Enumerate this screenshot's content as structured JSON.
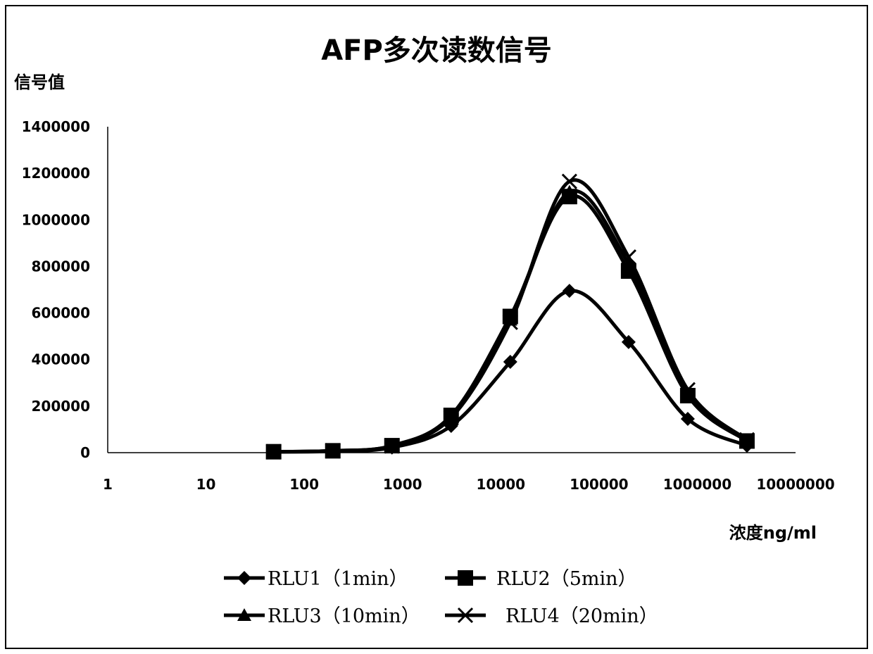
{
  "chart_data": {
    "type": "line",
    "title": "AFP多次读数信号",
    "ylabel": "信号值",
    "xlabel": "浓度ng/ml",
    "x_scale": "log",
    "xlim": [
      1,
      10000000
    ],
    "ylim": [
      0,
      1400000
    ],
    "x_ticks": [
      "1",
      "10",
      "100",
      "1000",
      "10000",
      "100000",
      "1000000",
      "10000000"
    ],
    "y_ticks": [
      "0",
      "200000",
      "400000",
      "600000",
      "800000",
      "1000000",
      "1200000",
      "1400000"
    ],
    "x": [
      48.8,
      195.3,
      781.3,
      3125,
      12500,
      50000,
      200000,
      800000,
      3200000
    ],
    "series": [
      {
        "name": "RLU1（1min）",
        "marker": "diamond",
        "values": [
          3000,
          6000,
          22000,
          115000,
          390000,
          695000,
          475000,
          145000,
          30000
        ]
      },
      {
        "name": "RLU2（5min）",
        "marker": "square",
        "values": [
          4000,
          8000,
          30000,
          160000,
          585000,
          1100000,
          780000,
          245000,
          50000
        ]
      },
      {
        "name": "RLU3（10min）",
        "marker": "triangle",
        "values": [
          4000,
          8000,
          28000,
          155000,
          570000,
          1120000,
          810000,
          255000,
          52000
        ]
      },
      {
        "name": "RLU4（20min）",
        "marker": "x",
        "values": [
          4000,
          8000,
          29000,
          150000,
          560000,
          1165000,
          840000,
          270000,
          55000
        ]
      }
    ],
    "grid": false,
    "legend_position": "bottom"
  }
}
